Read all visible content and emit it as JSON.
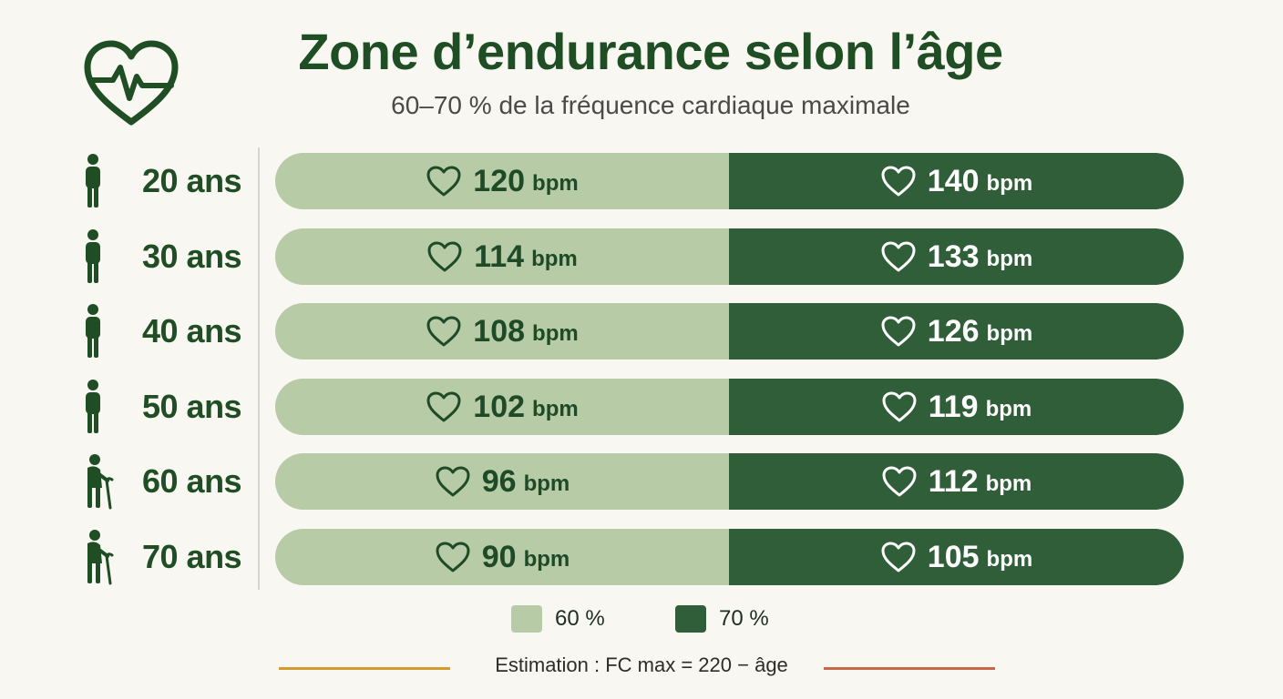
{
  "icons": {
    "logo": "heart-pulse-icon",
    "marker": "heart-outline-icon"
  },
  "colors": {
    "low": "#b6cba6",
    "high": "#2f5e39",
    "line_left": "#d39a2c",
    "line_right": "#c8664a"
  },
  "chart_data": {
    "type": "bar",
    "title": "Zone d’endurance selon l’âge",
    "subtitle": "60–70 % de la fréquence cardiaque maximale",
    "unit": "bpm",
    "categories": [
      "20 ans",
      "30 ans",
      "40 ans",
      "50 ans",
      "60 ans",
      "70 ans"
    ],
    "person_icons": [
      "person-icon",
      "person-icon",
      "person-icon",
      "person-icon",
      "elderly-person-cane-icon",
      "elderly-person-cane-icon"
    ],
    "series": [
      {
        "name": "60 %",
        "values": [
          120,
          114,
          108,
          102,
          96,
          90
        ]
      },
      {
        "name": "70 %",
        "values": [
          140,
          133,
          126,
          119,
          112,
          105
        ]
      }
    ],
    "legend_position": "bottom",
    "footnote": "Estimation : FC max = 220 − âge"
  }
}
